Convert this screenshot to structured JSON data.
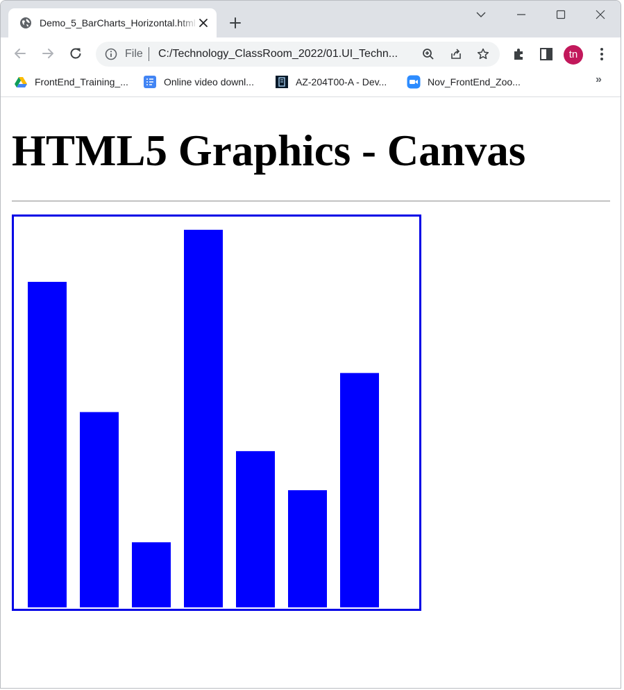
{
  "browser": {
    "tab": {
      "title": "Demo_5_BarCharts_Horizontal.html",
      "favicon": "globe-icon"
    },
    "window_controls": [
      "chevron-down-icon",
      "minimize-icon",
      "maximize-icon",
      "close-icon"
    ],
    "address": {
      "scheme_label": "File",
      "url": "C:/Technology_ClassRoom_2022/01.UI_Techn..."
    },
    "avatar_initials": "tn",
    "avatar_color": "#c2185b",
    "bookmarks": [
      {
        "label": "FrontEnd_Training_...",
        "icon": "google-drive-icon"
      },
      {
        "label": "Online video downl...",
        "icon": "document-list-icon"
      },
      {
        "label": "AZ-204T00-A - Dev...",
        "icon": "book-icon"
      },
      {
        "label": "Nov_FrontEnd_Zoo...",
        "icon": "zoom-video-icon"
      }
    ],
    "bookmarks_overflow": "»"
  },
  "page": {
    "heading": "HTML5 Graphics - Canvas"
  },
  "chart_data": {
    "type": "bar",
    "orientation": "vertical",
    "values": [
      500,
      300,
      100,
      580,
      240,
      180,
      360
    ],
    "ylim": [
      0,
      580
    ],
    "bar_color": "#0000ff",
    "border_color": "#0000e6",
    "grid": false,
    "legend": "none",
    "title": "",
    "xlabel": "",
    "ylabel": ""
  }
}
